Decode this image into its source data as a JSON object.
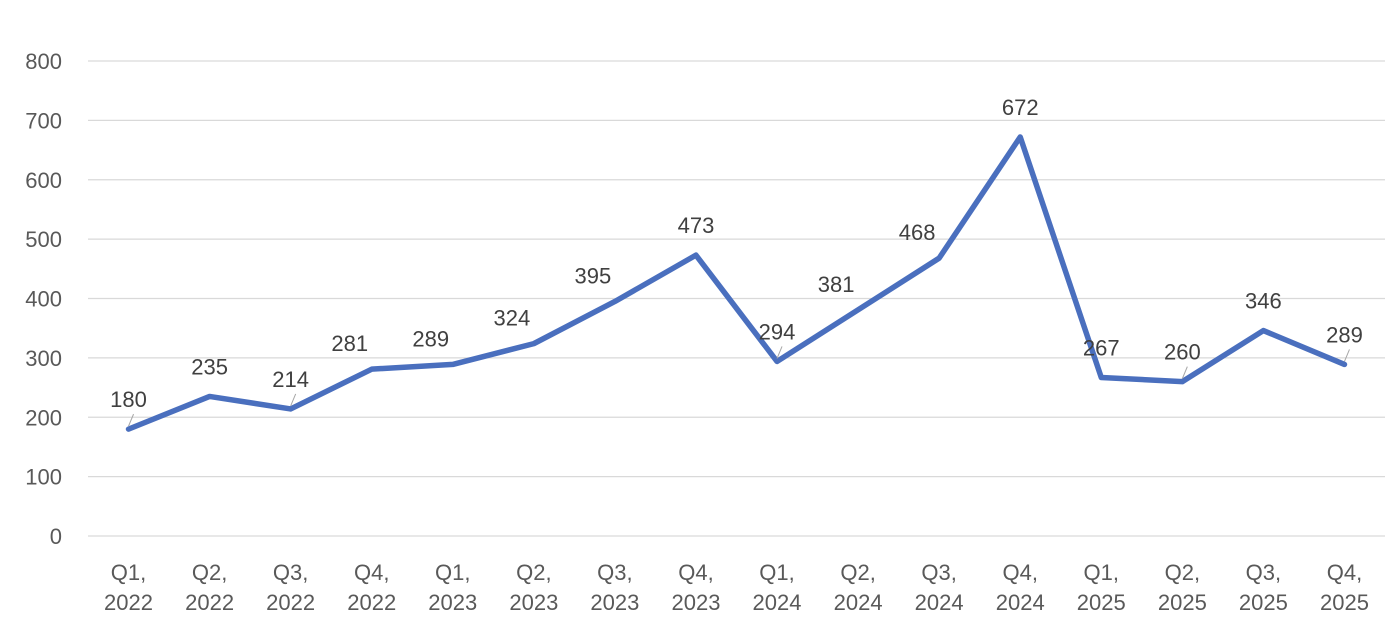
{
  "chart_data": {
    "type": "line",
    "title": "",
    "xlabel": "",
    "ylabel": "",
    "categories": [
      [
        "Q1,",
        "2022"
      ],
      [
        "Q2,",
        "2022"
      ],
      [
        "Q3,",
        "2022"
      ],
      [
        "Q4,",
        "2022"
      ],
      [
        "Q1,",
        "2023"
      ],
      [
        "Q2,",
        "2023"
      ],
      [
        "Q3,",
        "2023"
      ],
      [
        "Q4,",
        "2023"
      ],
      [
        "Q1,",
        "2024"
      ],
      [
        "Q2,",
        "2024"
      ],
      [
        "Q3,",
        "2024"
      ],
      [
        "Q4,",
        "2024"
      ],
      [
        "Q1,",
        "2025"
      ],
      [
        "Q2,",
        "2025"
      ],
      [
        "Q3,",
        "2025"
      ],
      [
        "Q4,",
        "2025"
      ]
    ],
    "series": [
      {
        "values": [
          180,
          235,
          214,
          281,
          289,
          324,
          395,
          473,
          294,
          381,
          468,
          672,
          267,
          260,
          346,
          289
        ],
        "color": "#4a6fbe"
      }
    ],
    "ylim": [
      0,
      800
    ],
    "yticks": [
      "0",
      "100",
      "200",
      "300",
      "400",
      "500",
      "600",
      "700",
      "800"
    ],
    "grid": true,
    "data_labels": true,
    "legend": "none"
  }
}
